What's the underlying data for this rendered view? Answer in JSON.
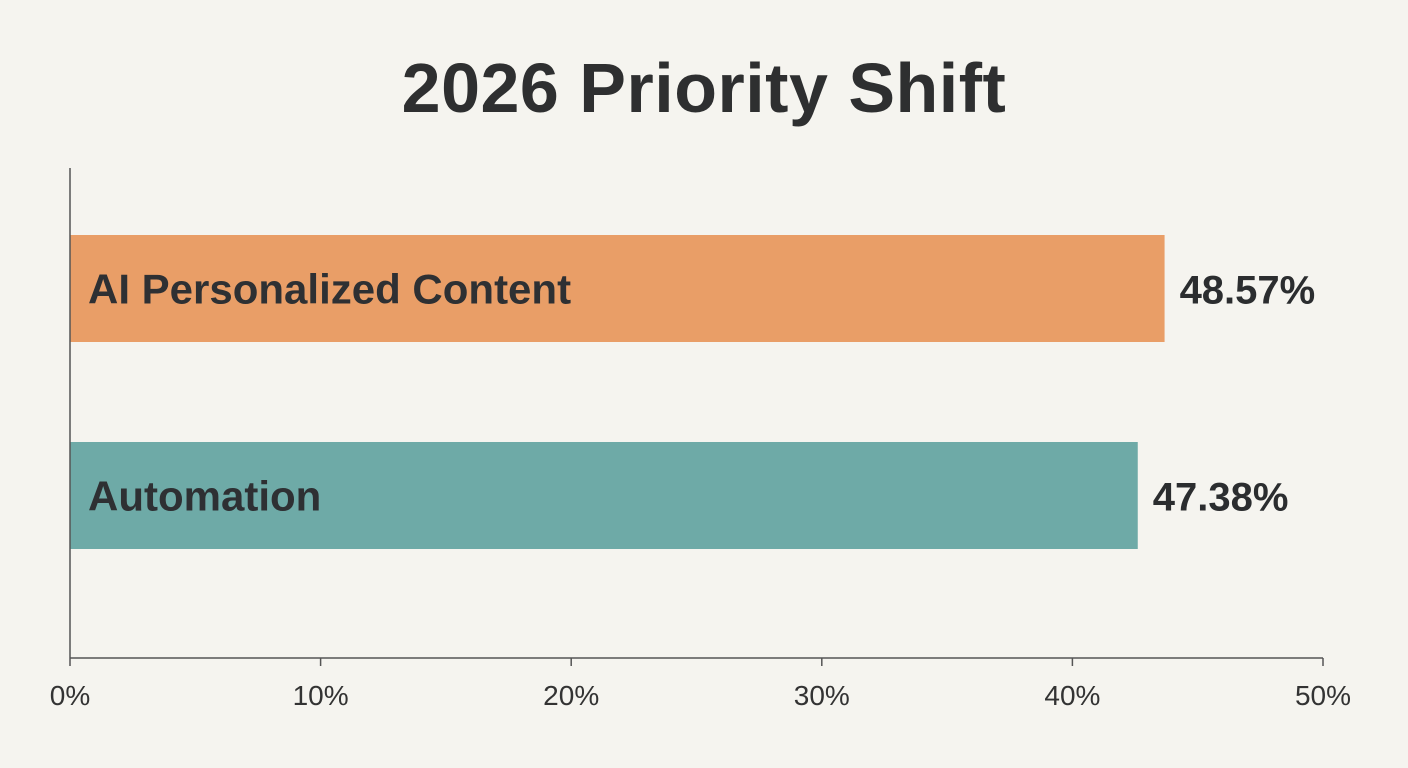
{
  "chart_data": {
    "type": "bar",
    "orientation": "horizontal",
    "title": "2026 Priority Shift",
    "categories": [
      "AI Personalized Content",
      "Automation"
    ],
    "values": [
      48.57,
      47.38
    ],
    "value_labels": [
      "48.57%",
      "47.38%"
    ],
    "colors": [
      "#e99e67",
      "#6eaaa7"
    ],
    "xlim": [
      0,
      50
    ],
    "x_ticks": [
      0,
      10,
      20,
      30,
      40,
      50
    ],
    "x_tick_labels": [
      "0%",
      "10%",
      "20%",
      "30%",
      "40%",
      "50%"
    ],
    "xlabel": "",
    "ylabel": "",
    "grid": false,
    "legend": "none"
  }
}
